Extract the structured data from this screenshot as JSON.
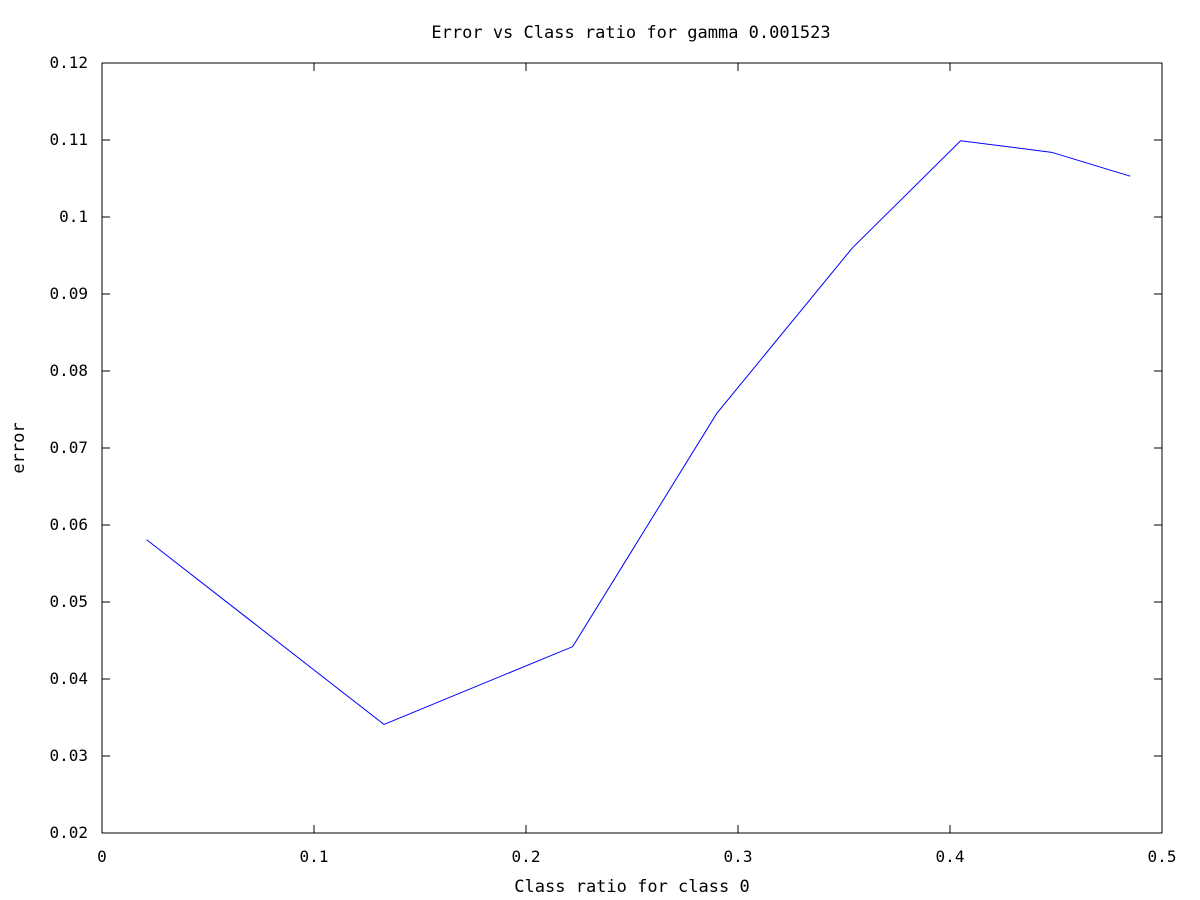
{
  "chart_data": {
    "type": "line",
    "title": "Error vs Class ratio for gamma 0.001523",
    "xlabel": "Class ratio for class 0",
    "ylabel": "error",
    "xlim": [
      0,
      0.5
    ],
    "ylim": [
      0.02,
      0.12
    ],
    "x_ticks": [
      "0",
      "0.1",
      "0.2",
      "0.3",
      "0.4",
      "0.5"
    ],
    "y_ticks": [
      "0.02",
      "0.03",
      "0.04",
      "0.05",
      "0.06",
      "0.07",
      "0.08",
      "0.09",
      "0.1",
      "0.11",
      "0.12"
    ],
    "grid": false,
    "series": [
      {
        "color": "#0000ff",
        "x": [
          0.021,
          0.133,
          0.222,
          0.29,
          0.354,
          0.405,
          0.448,
          0.485
        ],
        "y": [
          0.0581,
          0.0341,
          0.0442,
          0.0745,
          0.096,
          0.1099,
          0.1084,
          0.1053
        ]
      }
    ]
  }
}
